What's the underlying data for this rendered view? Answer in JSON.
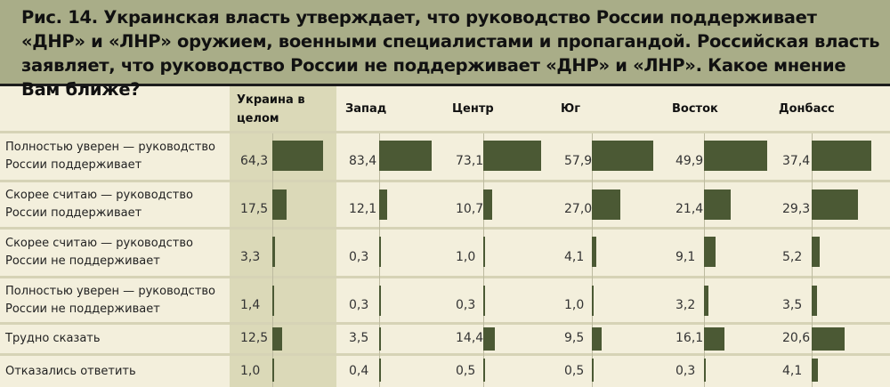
{
  "title": "Рис. 14. Украинская власть утверждает, что руководство России поддерживает «ДНР» и «ЛНР» оружием, военными специалистами и пропагандой. Российская власть заявляет, что руководство России не поддерживает «ДНР» и «ЛНР». Какое мнение Вам ближе?",
  "colors": {
    "title_band": "#a9ad88",
    "background": "#f3efdc",
    "highlight_column": "#dbd9b8",
    "bar": "#4b5934"
  },
  "chart_data": {
    "type": "bar",
    "orientation": "horizontal",
    "title": "Рис. 14. Украинская власть утверждает, что руководство России поддерживает «ДНР» и «ЛНР» оружием, военными специалистами и пропагандой. Российская власть заявляет, что руководство России не поддерживает «ДНР» и «ЛНР». Какое мнение Вам ближе?",
    "categories": [
      "Полностью уверен — руководство России поддерживает",
      "Скорее считаю — руководство России поддерживает",
      "Скорее считаю — руководство России не поддерживает",
      "Полностью уверен — руководство России не поддерживает",
      "Трудно сказать",
      "Отказались ответить"
    ],
    "series": [
      {
        "name": "Украина в целом",
        "values": [
          "64,3",
          "17,5",
          "3,3",
          "1,4",
          "12,5",
          "1,0"
        ]
      },
      {
        "name": "Запад",
        "values": [
          "83,4",
          "12,1",
          "0,3",
          "0,3",
          "3,5",
          "0,4"
        ]
      },
      {
        "name": "Центр",
        "values": [
          "73,1",
          "10,7",
          "1,0",
          "0,3",
          "14,4",
          "0,5"
        ]
      },
      {
        "name": "Юг",
        "values": [
          "57,9",
          "27,0",
          "4,1",
          "1,0",
          "9,5",
          "0,5"
        ]
      },
      {
        "name": "Восток",
        "values": [
          "49,9",
          "21,4",
          "9,1",
          "3,2",
          "16,1",
          "0,3"
        ]
      },
      {
        "name": "Донбасс",
        "values": [
          "37,4",
          "29,3",
          "5,2",
          "3,5",
          "20,6",
          "4,1"
        ]
      }
    ]
  }
}
